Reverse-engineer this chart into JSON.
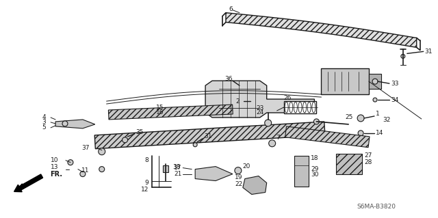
{
  "diagram_id": "S6MA-B3820",
  "bg_color": "#ffffff",
  "line_color": "#1a1a1a",
  "label_color": "#1a1a1a",
  "fig_width": 6.4,
  "fig_height": 3.19,
  "dpi": 100
}
